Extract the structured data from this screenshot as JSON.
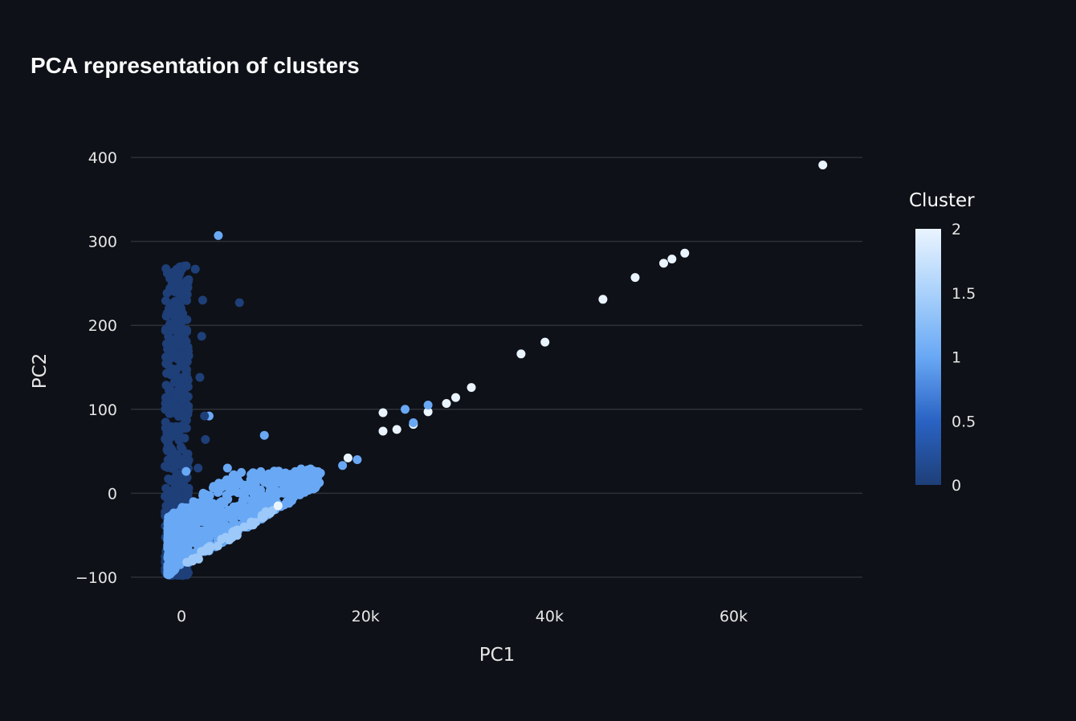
{
  "chart_data": {
    "type": "scatter",
    "title": "PCA representation of clusters",
    "xlabel": "PC1",
    "ylabel": "PC2",
    "xlim": [
      -5500,
      74000
    ],
    "ylim": [
      -125,
      425
    ],
    "x_ticks": [
      {
        "value": 0,
        "label": "0"
      },
      {
        "value": 20000,
        "label": "20k"
      },
      {
        "value": 40000,
        "label": "40k"
      },
      {
        "value": 60000,
        "label": "60k"
      }
    ],
    "y_ticks": [
      {
        "value": 400,
        "label": "400"
      },
      {
        "value": 300,
        "label": "300"
      },
      {
        "value": 200,
        "label": "200"
      },
      {
        "value": 100,
        "label": "100"
      },
      {
        "value": 0,
        "label": "0"
      },
      {
        "value": -100,
        "label": "−100"
      }
    ],
    "grid": true,
    "colorbar": {
      "title": "Cluster",
      "min": 0,
      "max": 2,
      "ticks": [
        {
          "value": 2,
          "label": "2"
        },
        {
          "value": 1.5,
          "label": "1.5"
        },
        {
          "value": 1,
          "label": "1"
        },
        {
          "value": 0.5,
          "label": "0.5"
        },
        {
          "value": 0,
          "label": "0"
        }
      ],
      "colorscale": [
        "#1e3f78",
        "#2a63c4",
        "#69a8f5",
        "#a9d1fb",
        "#eaf4ff"
      ]
    },
    "points": [
      {
        "x": 69700,
        "y": 391,
        "c": 2
      },
      {
        "x": 54700,
        "y": 286,
        "c": 2
      },
      {
        "x": 53300,
        "y": 279,
        "c": 2
      },
      {
        "x": 52400,
        "y": 274,
        "c": 2
      },
      {
        "x": 49300,
        "y": 257,
        "c": 2
      },
      {
        "x": 45800,
        "y": 231,
        "c": 2
      },
      {
        "x": 39500,
        "y": 180,
        "c": 2
      },
      {
        "x": 36900,
        "y": 166,
        "c": 2
      },
      {
        "x": 31500,
        "y": 126,
        "c": 2
      },
      {
        "x": 29800,
        "y": 114,
        "c": 2
      },
      {
        "x": 28800,
        "y": 107,
        "c": 2
      },
      {
        "x": 26800,
        "y": 97,
        "c": 2
      },
      {
        "x": 26800,
        "y": 105,
        "c": 1
      },
      {
        "x": 25200,
        "y": 82,
        "c": 2
      },
      {
        "x": 25200,
        "y": 84,
        "c": 1
      },
      {
        "x": 24300,
        "y": 100,
        "c": 1
      },
      {
        "x": 23400,
        "y": 76,
        "c": 2
      },
      {
        "x": 21900,
        "y": 96,
        "c": 2
      },
      {
        "x": 21900,
        "y": 74,
        "c": 2
      },
      {
        "x": 18100,
        "y": 42,
        "c": 2
      },
      {
        "x": 19100,
        "y": 40,
        "c": 1
      },
      {
        "x": 17500,
        "y": 33,
        "c": 1
      },
      {
        "x": 15100,
        "y": 24,
        "c": 1
      },
      {
        "x": 13000,
        "y": 29,
        "c": 1
      },
      {
        "x": 11000,
        "y": 14,
        "c": 1
      },
      {
        "x": 9000,
        "y": 69,
        "c": 1
      },
      {
        "x": 5000,
        "y": 30,
        "c": 1
      },
      {
        "x": 4000,
        "y": 307,
        "c": 1
      },
      {
        "x": 3000,
        "y": 92,
        "c": 1
      },
      {
        "x": 500,
        "y": 26,
        "c": 1
      },
      {
        "x": 6000,
        "y": 10,
        "c": 1
      },
      {
        "x": 8000,
        "y": 8,
        "c": 1
      },
      {
        "x": 10500,
        "y": -15,
        "c": 2
      },
      {
        "x": 1500,
        "y": 267,
        "c": 0
      },
      {
        "x": 700,
        "y": 245,
        "c": 0
      },
      {
        "x": 2300,
        "y": 230,
        "c": 0
      },
      {
        "x": 6300,
        "y": 227,
        "c": 0
      },
      {
        "x": 2200,
        "y": 187,
        "c": 0
      },
      {
        "x": 2000,
        "y": 138,
        "c": 0
      },
      {
        "x": 2500,
        "y": 92,
        "c": 0
      },
      {
        "x": 2600,
        "y": 64,
        "c": 0
      },
      {
        "x": 1800,
        "y": 30,
        "c": 0
      }
    ]
  }
}
